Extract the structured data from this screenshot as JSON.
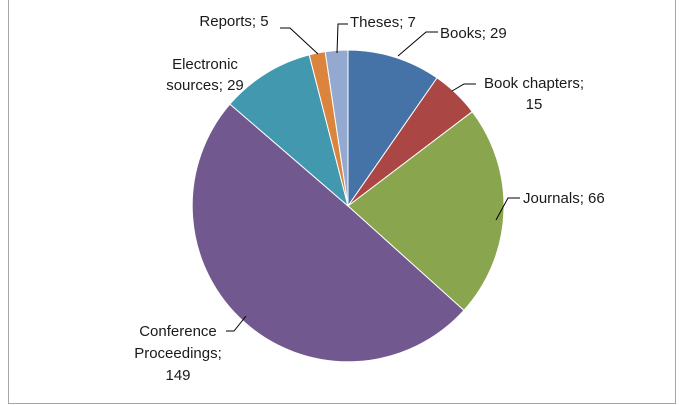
{
  "chart_data": {
    "type": "pie",
    "title": "",
    "start_angle_deg": 0,
    "direction": "clockwise",
    "legend": "none",
    "slices": [
      {
        "name": "Books",
        "value": 29,
        "color": "#4572a7",
        "label_lines": [
          "Books; 29"
        ]
      },
      {
        "name": "Book chapters",
        "value": 15,
        "color": "#aa4643",
        "label_lines": [
          "Book chapters;",
          "15"
        ]
      },
      {
        "name": "Journals",
        "value": 66,
        "color": "#89a54e",
        "label_lines": [
          "Journals; 66"
        ]
      },
      {
        "name": "Conference Proceedings",
        "value": 149,
        "color": "#71588f",
        "label_lines": [
          "Conference",
          "Proceedings;",
          "149"
        ]
      },
      {
        "name": "Electronic sources",
        "value": 29,
        "color": "#4198af",
        "label_lines": [
          "Electronic",
          "sources; 29"
        ]
      },
      {
        "name": "Reports",
        "value": 5,
        "color": "#db843d",
        "label_lines": [
          "Reports; 5"
        ]
      },
      {
        "name": "Theses",
        "value": 7,
        "color": "#93a9cf",
        "label_lines": [
          "Theses; 7"
        ]
      }
    ]
  }
}
